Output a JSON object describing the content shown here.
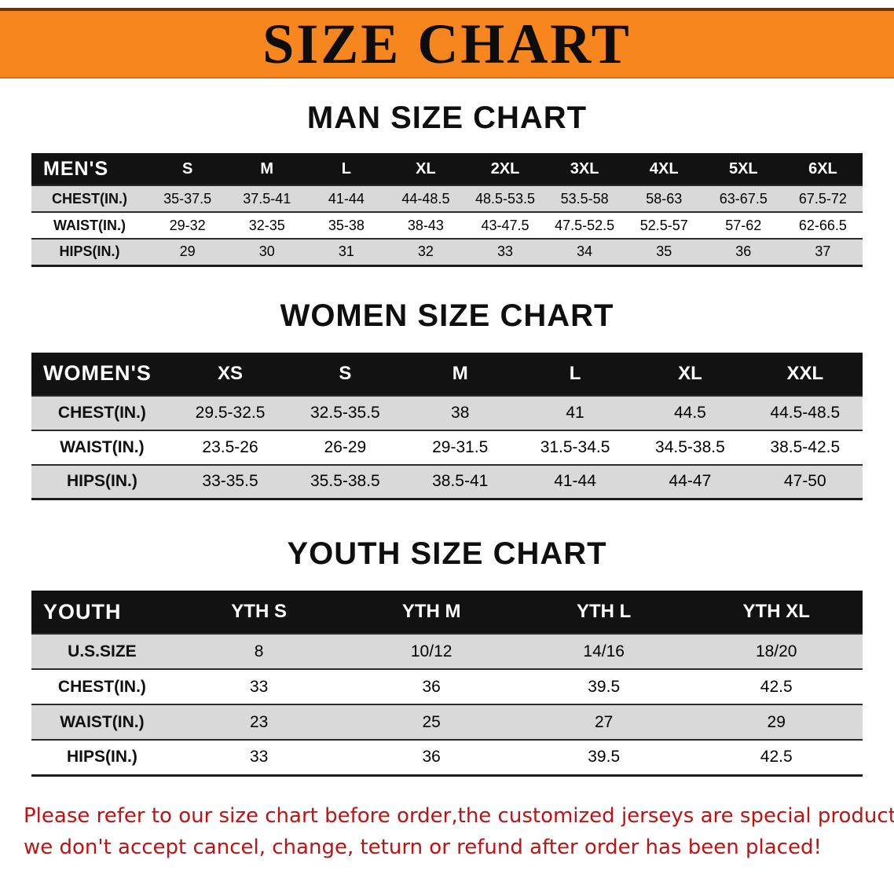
{
  "banner": {
    "title": "SIZE CHART",
    "bg_color": "#f6861d",
    "text_color": "#0d0d0d"
  },
  "sections": [
    {
      "heading": "MAN SIZE CHART",
      "table": {
        "header": [
          "MEN'S",
          "S",
          "M",
          "L",
          "XL",
          "2XL",
          "3XL",
          "4XL",
          "5XL",
          "6XL"
        ],
        "rows": [
          [
            "CHEST(IN.)",
            "35-37.5",
            "37.5-41",
            "41-44",
            "44-48.5",
            "48.5-53.5",
            "53.5-58",
            "58-63",
            "63-67.5",
            "67.5-72"
          ],
          [
            "WAIST(IN.)",
            "29-32",
            "32-35",
            "35-38",
            "38-43",
            "43-47.5",
            "47.5-52.5",
            "52.5-57",
            "57-62",
            "62-66.5"
          ],
          [
            "HIPS(IN.)",
            "29",
            "30",
            "31",
            "32",
            "33",
            "34",
            "35",
            "36",
            "37"
          ]
        ]
      }
    },
    {
      "heading": "WOMEN SIZE CHART",
      "table": {
        "header": [
          "WOMEN'S",
          "XS",
          "S",
          "M",
          "L",
          "XL",
          "XXL"
        ],
        "rows": [
          [
            "CHEST(IN.)",
            "29.5-32.5",
            "32.5-35.5",
            "38",
            "41",
            "44.5",
            "44.5-48.5"
          ],
          [
            "WAIST(IN.)",
            "23.5-26",
            "26-29",
            "29-31.5",
            "31.5-34.5",
            "34.5-38.5",
            "38.5-42.5"
          ],
          [
            "HIPS(IN.)",
            "33-35.5",
            "35.5-38.5",
            "38.5-41",
            "41-44",
            "44-47",
            "47-50"
          ]
        ]
      }
    },
    {
      "heading": "YOUTH SIZE CHART",
      "table": {
        "header": [
          "YOUTH",
          "YTH S",
          "YTH M",
          "YTH L",
          "YTH XL"
        ],
        "rows": [
          [
            "U.S.SIZE",
            "8",
            "10/12",
            "14/16",
            "18/20"
          ],
          [
            "CHEST(IN.)",
            "33",
            "36",
            "39.5",
            "42.5"
          ],
          [
            "WAIST(IN.)",
            "23",
            "25",
            "27",
            "29"
          ],
          [
            "HIPS(IN.)",
            "33",
            "36",
            "39.5",
            "42.5"
          ]
        ]
      }
    }
  ],
  "footnote": {
    "color": "#c41010",
    "lines": [
      "Please refer to our size chart before order,the customized jerseys are special products,",
      "we don't accept cancel, change, teturn or refund after order has been placed!"
    ]
  }
}
